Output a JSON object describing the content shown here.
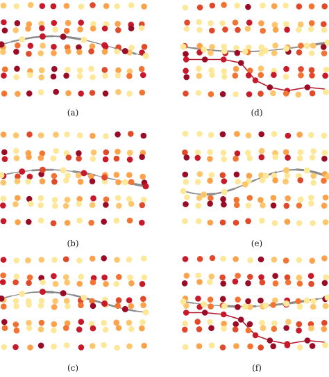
{
  "panels": [
    {
      "id": "a",
      "caption": "(a)"
    },
    {
      "id": "b",
      "caption": "(b)"
    },
    {
      "id": "c",
      "caption": "(c)"
    },
    {
      "id": "d",
      "caption": "(d)"
    },
    {
      "id": "e",
      "caption": "(e)"
    },
    {
      "id": "f",
      "caption": "(f)"
    }
  ],
  "colors": {
    "node_palette": [
      "#fde89a",
      "#fdc56c",
      "#fba24b",
      "#f37432",
      "#e04a2a",
      "#c8192a",
      "#9a0b26"
    ],
    "edge_gray": "#8c8c8c",
    "edge_red": "#b2182b",
    "background": "#ffffff"
  }
}
